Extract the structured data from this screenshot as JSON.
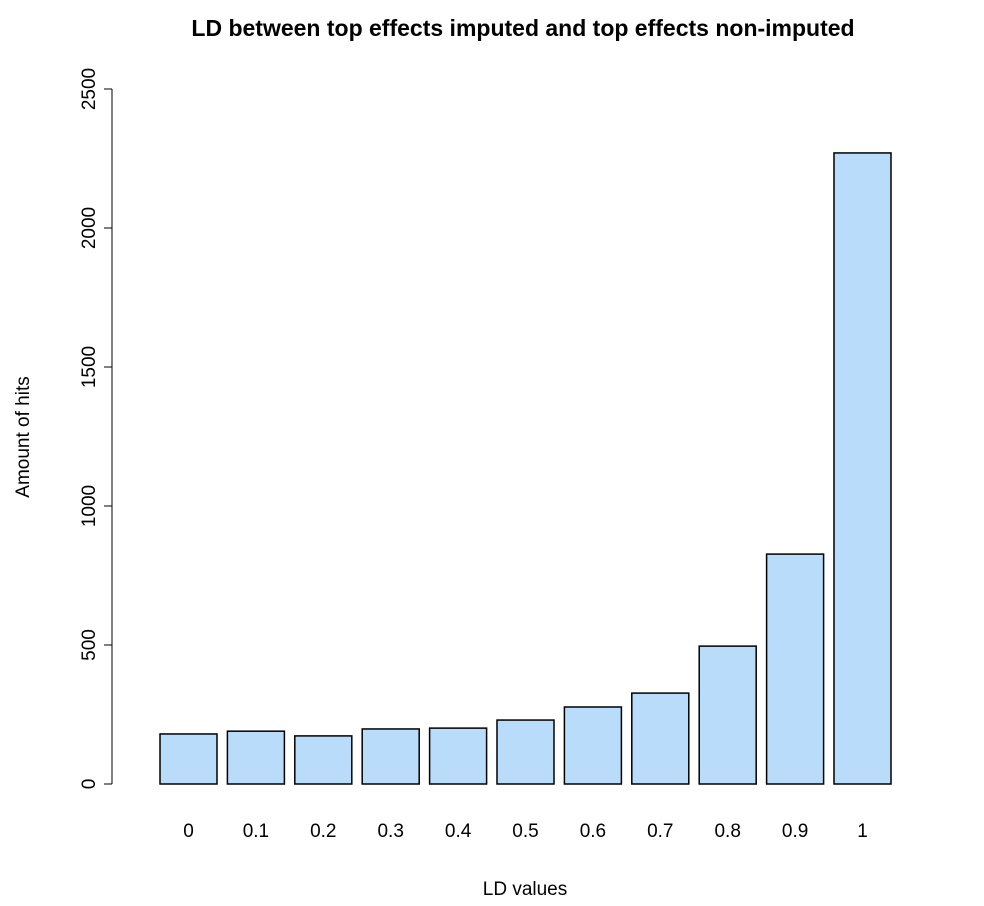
{
  "chart_data": {
    "type": "bar",
    "title": "LD between top effects imputed and top effects non-imputed",
    "x_label": "LD values",
    "y_label": "Amount of hits",
    "categories": [
      "0",
      "0.1",
      "0.2",
      "0.3",
      "0.4",
      "0.5",
      "0.6",
      "0.7",
      "0.8",
      "0.9",
      "1"
    ],
    "values": [
      180,
      190,
      173,
      198,
      201,
      230,
      277,
      327,
      496,
      827,
      2270
    ],
    "color": "#b9dcfb",
    "ylim": [
      0,
      2500
    ],
    "yticks": [
      0,
      500,
      1000,
      1500,
      2000,
      2500
    ],
    "grid": false
  }
}
